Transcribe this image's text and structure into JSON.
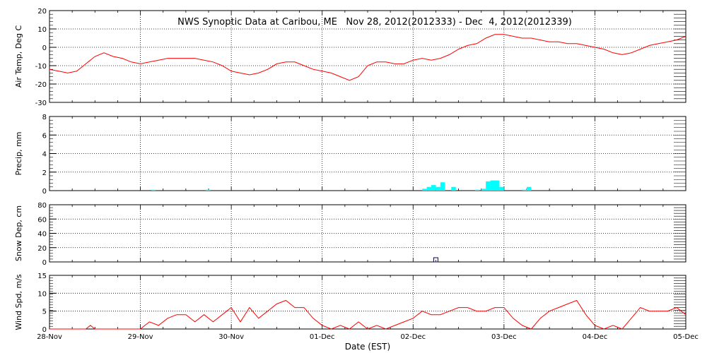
{
  "title": "NWS Synoptic Data at Caribou, ME   Nov 28, 2012(2012333) - Dec  4, 2012(2012339)",
  "xlabel": "Date (EST)",
  "x_ticks": [
    "28-Nov",
    "29-Nov",
    "30-Nov",
    "01-Dec",
    "02-Dec",
    "03-Dec",
    "04-Dec",
    "05-Dec"
  ],
  "colors": {
    "temp": "#ff0000",
    "precip": "#00ffff",
    "snow": "#000080",
    "wind": "#ff0000",
    "axis": "#000000"
  },
  "chart_data": [
    {
      "type": "line",
      "ylabel": "Air Temp, Deg C",
      "ylim": [
        -30,
        20
      ],
      "yticks": [
        -30,
        -20,
        -10,
        0,
        10,
        20
      ],
      "x_unit": "days since 28-Nov 00:00 EST",
      "series": [
        {
          "name": "Air Temp",
          "x": [
            0,
            0.1,
            0.2,
            0.3,
            0.4,
            0.5,
            0.6,
            0.7,
            0.8,
            0.9,
            1.0,
            1.1,
            1.2,
            1.3,
            1.4,
            1.5,
            1.6,
            1.7,
            1.8,
            1.9,
            2.0,
            2.1,
            2.2,
            2.3,
            2.4,
            2.5,
            2.6,
            2.7,
            2.8,
            2.9,
            3.0,
            3.1,
            3.2,
            3.3,
            3.4,
            3.5,
            3.6,
            3.7,
            3.8,
            3.9,
            4.0,
            4.1,
            4.2,
            4.3,
            4.4,
            4.5,
            4.6,
            4.7,
            4.8,
            4.9,
            5.0,
            5.1,
            5.2,
            5.3,
            5.4,
            5.5,
            5.6,
            5.7,
            5.8,
            5.9,
            6.0,
            6.1,
            6.2,
            6.3,
            6.4,
            6.5,
            6.6,
            6.7,
            6.8,
            6.9,
            7.0
          ],
          "values": [
            -12,
            -13,
            -14,
            -13,
            -9,
            -5,
            -3,
            -5,
            -6,
            -8,
            -9,
            -8,
            -7,
            -6,
            -6,
            -6,
            -6,
            -7,
            -8,
            -10,
            -13,
            -14,
            -15,
            -14,
            -12,
            -9,
            -8,
            -8,
            -10,
            -12,
            -13,
            -14,
            -16,
            -18,
            -16,
            -10,
            -8,
            -8,
            -9,
            -9,
            -7,
            -6,
            -7,
            -6,
            -4,
            -1,
            1,
            2,
            5,
            7,
            7,
            6,
            5,
            5,
            4,
            3,
            3,
            2,
            2,
            1,
            0,
            -1,
            -3,
            -4,
            -3,
            -1,
            1,
            2,
            3,
            4,
            6
          ]
        }
      ]
    },
    {
      "type": "bar",
      "ylabel": "Precip, mm",
      "ylim": [
        0,
        8
      ],
      "yticks": [
        0,
        2,
        4,
        6,
        8
      ],
      "x_unit": "days since 28-Nov 00:00 EST",
      "series": [
        {
          "name": "Precip",
          "x": [
            1.12,
            1.72,
            4.1,
            4.15,
            4.2,
            4.25,
            4.3,
            4.42,
            4.68,
            4.75,
            4.8,
            4.85,
            4.9,
            4.95,
            5.2,
            5.25
          ],
          "values": [
            0.1,
            0.1,
            0.2,
            0.4,
            0.6,
            0.4,
            0.9,
            0.4,
            0.1,
            0.2,
            1.0,
            1.1,
            1.1,
            0.4,
            0.1,
            0.4
          ]
        }
      ]
    },
    {
      "type": "scatter",
      "ylabel": "Snow Dep, cm",
      "ylim": [
        0,
        80
      ],
      "yticks": [
        0,
        20,
        40,
        60,
        80
      ],
      "x_unit": "days since 28-Nov 00:00 EST",
      "series": [
        {
          "name": "Snow Depth",
          "x": [
            4.25
          ],
          "values": [
            0
          ]
        }
      ]
    },
    {
      "type": "line",
      "ylabel": "Wind Spd, m/s",
      "ylim": [
        0,
        15
      ],
      "yticks": [
        0,
        5,
        10,
        15
      ],
      "x_unit": "days since 28-Nov 00:00 EST",
      "series": [
        {
          "name": "Wind Speed",
          "x": [
            0,
            0.2,
            0.4,
            0.45,
            0.5,
            0.6,
            0.8,
            0.95,
            1.0,
            1.05,
            1.1,
            1.2,
            1.3,
            1.4,
            1.5,
            1.6,
            1.7,
            1.8,
            1.9,
            2.0,
            2.1,
            2.2,
            2.3,
            2.4,
            2.5,
            2.6,
            2.7,
            2.8,
            2.9,
            3.0,
            3.1,
            3.2,
            3.3,
            3.4,
            3.5,
            3.6,
            3.7,
            3.8,
            3.9,
            4.0,
            4.1,
            4.2,
            4.3,
            4.4,
            4.5,
            4.6,
            4.7,
            4.8,
            4.9,
            5.0,
            5.1,
            5.2,
            5.3,
            5.4,
            5.5,
            5.6,
            5.7,
            5.8,
            5.9,
            6.0,
            6.1,
            6.2,
            6.3,
            6.4,
            6.5,
            6.6,
            6.7,
            6.8,
            6.9,
            7.0
          ],
          "values": [
            0,
            0,
            0,
            1,
            0,
            0,
            0,
            0,
            0,
            1,
            2,
            1,
            3,
            4,
            4,
            2,
            4,
            2,
            4,
            6,
            2,
            6,
            3,
            5,
            7,
            8,
            6,
            6,
            3,
            1,
            0,
            1,
            0,
            2,
            0,
            1,
            0,
            1,
            2,
            3,
            5,
            4,
            4,
            5,
            6,
            6,
            5,
            5,
            6,
            6,
            3,
            1,
            0,
            3,
            5,
            6,
            7,
            8,
            4,
            1,
            0,
            1,
            0,
            3,
            6,
            5,
            5,
            5,
            6,
            4
          ]
        }
      ]
    }
  ]
}
